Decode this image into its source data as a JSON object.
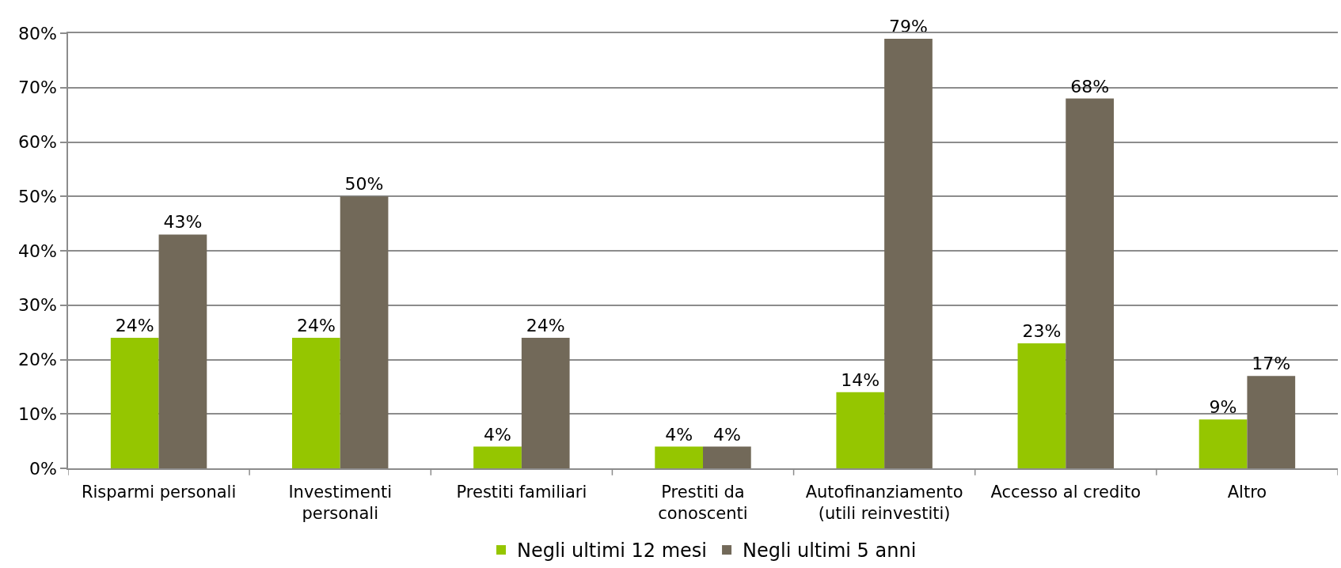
{
  "chart_data": {
    "type": "bar",
    "categories": [
      "Risparmi personali",
      "Investimenti personali",
      "Prestiti familiari",
      "Prestiti da conoscenti",
      "Autofinanziamento (utili reinvestiti)",
      "Accesso al credito",
      "Altro"
    ],
    "series": [
      {
        "name": "Negli ultimi 12 mesi",
        "color": "#95c600",
        "values": [
          24,
          24,
          4,
          4,
          14,
          23,
          9
        ],
        "value_labels": [
          "24%",
          "24%",
          "4%",
          "4%",
          "14%",
          "23%",
          "9%"
        ]
      },
      {
        "name": "Negli ultimi 5 anni",
        "color": "#726959",
        "values": [
          43,
          50,
          24,
          4,
          79,
          68,
          17
        ],
        "value_labels": [
          "43%",
          "50%",
          "24%",
          "4%",
          "79%",
          "68%",
          "17%"
        ]
      }
    ],
    "ylim": [
      0,
      80
    ],
    "yticks": [
      {
        "value": 0,
        "label": "0%"
      },
      {
        "value": 10,
        "label": "10%"
      },
      {
        "value": 20,
        "label": "20%"
      },
      {
        "value": 30,
        "label": "30%"
      },
      {
        "value": 40,
        "label": "40%"
      },
      {
        "value": 50,
        "label": "50%"
      },
      {
        "value": 60,
        "label": "60%"
      },
      {
        "value": 70,
        "label": "70%"
      },
      {
        "value": 80,
        "label": "80%"
      }
    ],
    "grid": "y",
    "legend": "bottom"
  }
}
